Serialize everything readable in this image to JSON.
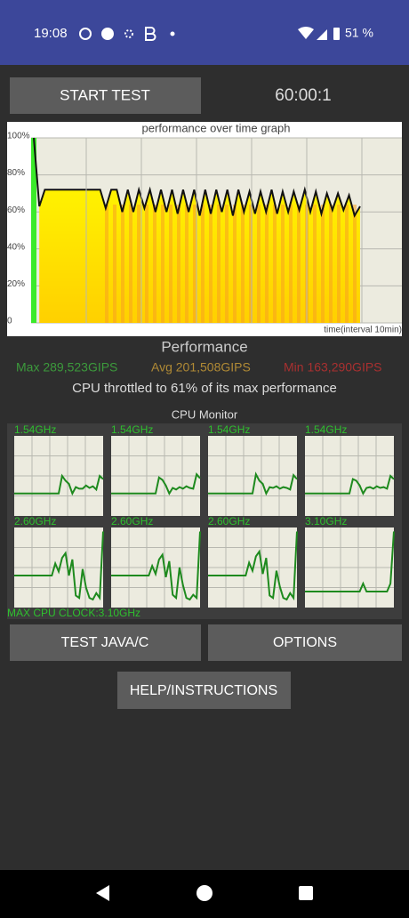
{
  "status_bar": {
    "time": "19:08",
    "battery": "51 %"
  },
  "start_button": "START TEST",
  "timer": "60:00:1",
  "graph": {
    "title": "performance over time graph",
    "ylim": [
      0,
      100
    ],
    "yticks": [
      0,
      {
        "value": 20,
        "label": "20%"
      },
      {
        "value": 40,
        "label": "40%"
      },
      {
        "value": 60,
        "label": "60%"
      },
      {
        "value": 80,
        "label": "80%"
      },
      {
        "value": 100,
        "label": "100%"
      }
    ],
    "x_label": "time(interval 10min)",
    "values": [
      100,
      63,
      72,
      72,
      72,
      72,
      72,
      72,
      72,
      72,
      72,
      72,
      72,
      62,
      72,
      72,
      60,
      72,
      60,
      72,
      62,
      72,
      60,
      72,
      60,
      72,
      59,
      72,
      60,
      72,
      58,
      72,
      59,
      72,
      60,
      72,
      58,
      72,
      60,
      71,
      59,
      71,
      60,
      72,
      59,
      71,
      60,
      71,
      61,
      72,
      60,
      71,
      59,
      70,
      61,
      70,
      61,
      69,
      58,
      63
    ]
  },
  "performance": {
    "title": "Performance",
    "max": "Max 289,523GIPS",
    "avg": "Avg 201,508GIPS",
    "min": "Min 163,290GIPS",
    "throttle": "CPU throttled to 61% of its max performance"
  },
  "cpu_monitor": {
    "title": "CPU Monitor",
    "max_clock": "MAX CPU CLOCK:3.10GHz",
    "cores": [
      {
        "clock": "1.54GHz",
        "values": [
          28,
          28,
          28,
          28,
          28,
          28,
          28,
          28,
          28,
          28,
          28,
          28,
          28,
          28,
          50,
          44,
          40,
          28,
          36,
          34,
          34,
          38,
          35,
          37,
          33,
          50,
          46
        ]
      },
      {
        "clock": "1.54GHz",
        "values": [
          28,
          28,
          28,
          28,
          28,
          28,
          28,
          28,
          28,
          28,
          28,
          28,
          28,
          28,
          48,
          45,
          38,
          28,
          35,
          33,
          36,
          34,
          37,
          35,
          34,
          52,
          47
        ]
      },
      {
        "clock": "1.54GHz",
        "values": [
          28,
          28,
          28,
          28,
          28,
          28,
          28,
          28,
          28,
          28,
          28,
          28,
          28,
          28,
          52,
          44,
          40,
          28,
          36,
          35,
          37,
          34,
          36,
          35,
          33,
          51,
          46
        ]
      },
      {
        "clock": "1.54GHz",
        "values": [
          28,
          28,
          28,
          28,
          28,
          28,
          28,
          28,
          28,
          28,
          28,
          28,
          28,
          28,
          46,
          44,
          38,
          28,
          35,
          36,
          34,
          37,
          35,
          36,
          34,
          50,
          46
        ]
      },
      {
        "clock": "2.60GHz",
        "values": [
          40,
          40,
          40,
          40,
          40,
          40,
          40,
          40,
          40,
          40,
          40,
          40,
          55,
          45,
          62,
          68,
          40,
          60,
          15,
          12,
          48,
          25,
          12,
          10,
          18,
          12,
          95
        ]
      },
      {
        "clock": "2.60GHz",
        "values": [
          40,
          40,
          40,
          40,
          40,
          40,
          40,
          40,
          40,
          40,
          40,
          40,
          52,
          42,
          60,
          66,
          38,
          58,
          16,
          12,
          50,
          28,
          12,
          10,
          16,
          12,
          95
        ]
      },
      {
        "clock": "2.60GHz",
        "values": [
          40,
          40,
          40,
          40,
          40,
          40,
          40,
          40,
          40,
          40,
          40,
          40,
          56,
          46,
          64,
          70,
          42,
          62,
          15,
          12,
          46,
          26,
          12,
          10,
          18,
          12,
          95
        ]
      },
      {
        "clock": "3.10GHz",
        "values": [
          20,
          20,
          20,
          20,
          20,
          20,
          20,
          20,
          20,
          20,
          20,
          20,
          20,
          20,
          20,
          20,
          20,
          30,
          20,
          20,
          20,
          20,
          20,
          20,
          20,
          30,
          95
        ]
      }
    ]
  },
  "buttons": {
    "test": "TEST JAVA/C",
    "options": "OPTIONS",
    "help": "HELP/INSTRUCTIONS"
  }
}
